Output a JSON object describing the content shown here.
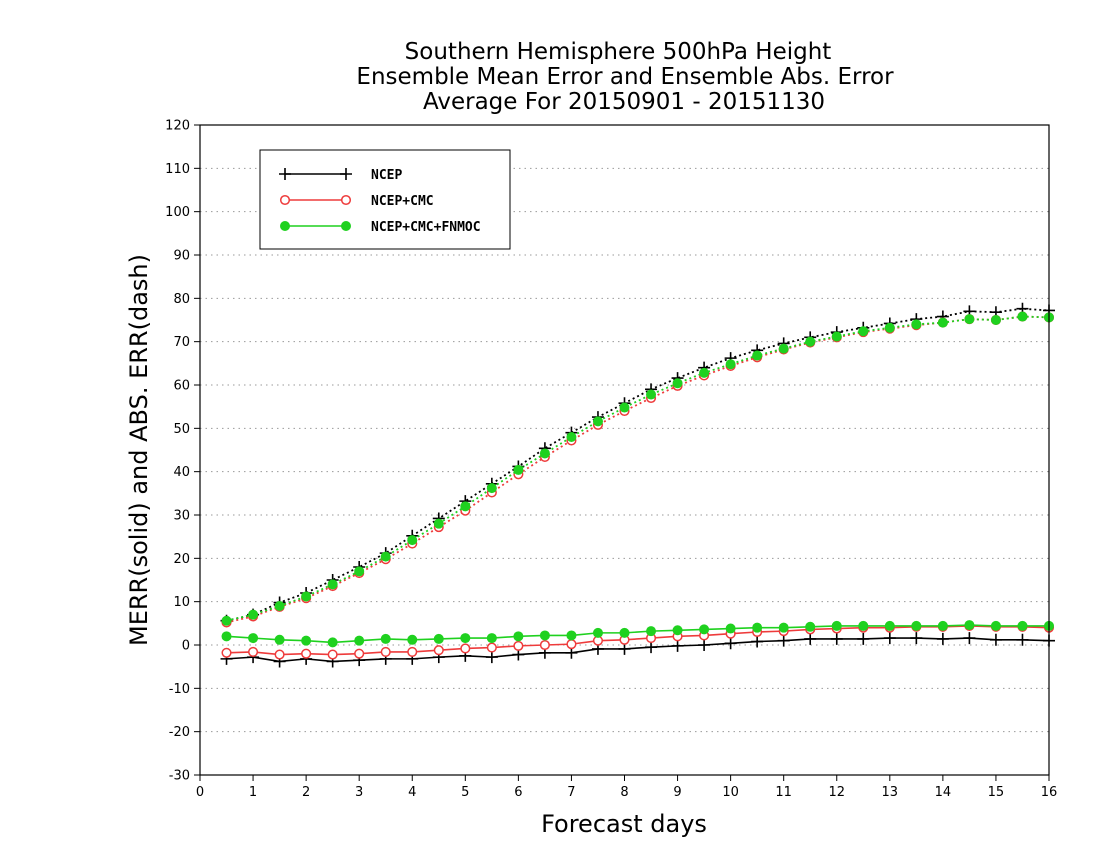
{
  "chart_data": {
    "type": "line",
    "title": [
      "Southern Hemisphere 500hPa Height",
      "Ensemble Mean Error and Ensemble Abs. Error",
      "Average For 20150901 - 20151130"
    ],
    "xlabel": "Forecast days",
    "ylabel": "MERR(solid) and ABS. ERR(dash)",
    "xlim": [
      0,
      16
    ],
    "ylim": [
      -30,
      120
    ],
    "xticks": [
      0,
      1,
      2,
      3,
      4,
      5,
      6,
      7,
      8,
      9,
      10,
      11,
      12,
      13,
      14,
      15,
      16
    ],
    "yticks": [
      -30,
      -20,
      -10,
      0,
      10,
      20,
      30,
      40,
      50,
      60,
      70,
      80,
      90,
      100,
      110,
      120
    ],
    "grid": "horizontal dotted",
    "legend_position": "top-left",
    "x": [
      0.5,
      1,
      1.5,
      2,
      2.5,
      3,
      3.5,
      4,
      4.5,
      5,
      5.5,
      6,
      6.5,
      7,
      7.5,
      8,
      8.5,
      9,
      9.5,
      10,
      10.5,
      11,
      11.5,
      12,
      12.5,
      13,
      13.5,
      14,
      14.5,
      15,
      15.5,
      16
    ],
    "series": [
      {
        "name": "NCEP",
        "color": "#000000",
        "marker": "plus",
        "merr": [
          -3.2,
          -2.8,
          -3.8,
          -3.2,
          -3.8,
          -3.5,
          -3.2,
          -3.2,
          -2.8,
          -2.5,
          -2.8,
          -2.2,
          -1.8,
          -1.8,
          -0.9,
          -0.9,
          -0.5,
          -0.2,
          0.0,
          0.4,
          0.8,
          1.0,
          1.4,
          1.4,
          1.4,
          1.6,
          1.6,
          1.4,
          1.6,
          1.2,
          1.2,
          1.0
        ],
        "abs_err": [
          5.6,
          7.0,
          9.8,
          12.0,
          15.0,
          18.0,
          21.2,
          25.2,
          29.2,
          33.2,
          37.2,
          41.2,
          45.4,
          49.0,
          52.6,
          55.8,
          59.0,
          61.6,
          64.0,
          66.2,
          68.0,
          69.6,
          71.0,
          72.2,
          73.2,
          74.2,
          75.2,
          75.8,
          77.0,
          76.8,
          77.6,
          77.2
        ]
      },
      {
        "name": "NCEP+CMC",
        "color": "#ee3b3b",
        "marker": "open-circle",
        "merr": [
          -1.8,
          -1.6,
          -2.2,
          -2.0,
          -2.2,
          -2.0,
          -1.6,
          -1.6,
          -1.2,
          -0.8,
          -0.6,
          -0.2,
          0.0,
          0.2,
          1.0,
          1.2,
          1.6,
          2.0,
          2.2,
          2.6,
          3.0,
          3.2,
          3.6,
          3.8,
          4.0,
          4.0,
          4.2,
          4.2,
          4.4,
          4.2,
          4.2,
          4.0
        ],
        "abs_err": [
          5.2,
          6.6,
          8.8,
          10.8,
          13.6,
          16.6,
          19.8,
          23.4,
          27.2,
          31.0,
          35.2,
          39.4,
          43.4,
          47.2,
          50.8,
          54.0,
          57.0,
          59.8,
          62.2,
          64.4,
          66.4,
          68.2,
          69.8,
          71.0,
          72.2,
          73.0,
          73.8,
          74.4,
          75.2,
          75.0,
          75.8,
          75.6
        ]
      },
      {
        "name": "NCEP+CMC+FNMOC",
        "color": "#1fd11f",
        "marker": "filled-circle",
        "merr": [
          2.0,
          1.6,
          1.2,
          1.0,
          0.6,
          1.0,
          1.4,
          1.2,
          1.4,
          1.6,
          1.6,
          2.0,
          2.2,
          2.2,
          2.8,
          2.8,
          3.2,
          3.4,
          3.6,
          3.8,
          4.0,
          4.0,
          4.2,
          4.4,
          4.4,
          4.4,
          4.4,
          4.4,
          4.6,
          4.4,
          4.4,
          4.4
        ],
        "abs_err": [
          5.6,
          7.0,
          9.0,
          11.2,
          14.0,
          17.0,
          20.4,
          24.2,
          28.0,
          32.0,
          36.2,
          40.4,
          44.2,
          48.0,
          51.6,
          54.8,
          57.8,
          60.4,
          62.8,
          64.8,
          66.8,
          68.4,
          70.0,
          71.2,
          72.4,
          73.2,
          74.0,
          74.4,
          75.2,
          75.0,
          75.8,
          75.6
        ]
      }
    ]
  }
}
